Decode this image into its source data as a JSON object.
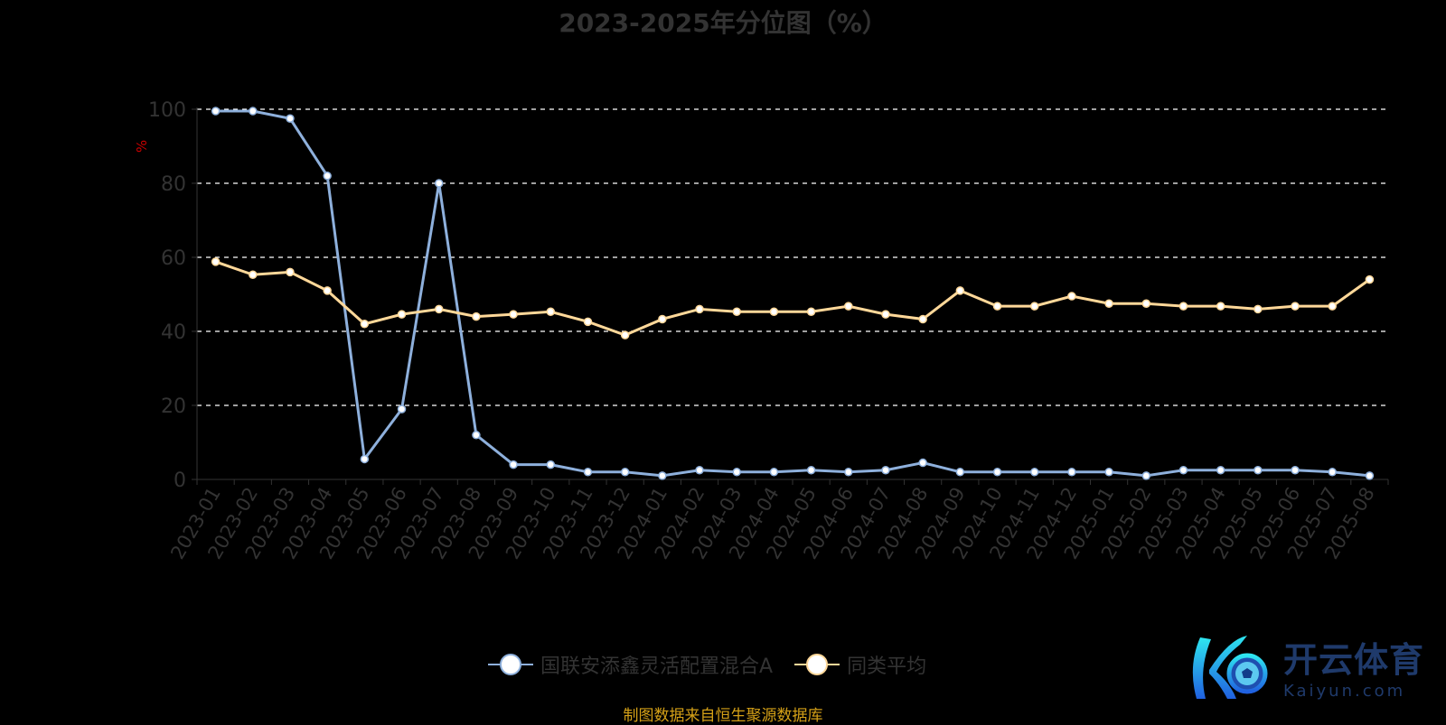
{
  "chart_data": {
    "type": "line",
    "title": "2023-2025年分位图（%）",
    "ylabel": "%",
    "xlabel": "",
    "ylim": [
      0,
      100
    ],
    "yticks": [
      0,
      20,
      40,
      60,
      80,
      100
    ],
    "grid": true,
    "legend_position": "bottom",
    "categories": [
      "2023-01",
      "2023-02",
      "2023-03",
      "2023-04",
      "2023-05",
      "2023-06",
      "2023-07",
      "2023-08",
      "2023-09",
      "2023-10",
      "2023-11",
      "2023-12",
      "2024-01",
      "2024-02",
      "2024-03",
      "2024-04",
      "2024-05",
      "2024-06",
      "2024-07",
      "2024-08",
      "2024-09",
      "2024-10",
      "2024-11",
      "2024-12",
      "2025-01",
      "2025-02",
      "2025-03",
      "2025-04",
      "2025-05",
      "2025-06",
      "2025-07",
      "2025-08"
    ],
    "series": [
      {
        "name": "国联安添鑫灵活配置混合A",
        "color": "#8eb0dc",
        "values": [
          99.5,
          99.5,
          97.5,
          82,
          5.5,
          19,
          80,
          12,
          4,
          4,
          2,
          2,
          1,
          2.5,
          2,
          2,
          2.5,
          2,
          2.5,
          4.5,
          2,
          2,
          2,
          2,
          2,
          1,
          2.5,
          2.5,
          2.5,
          2.5,
          2,
          1
        ]
      },
      {
        "name": "同类平均",
        "color": "#ffd899",
        "values": [
          58.8,
          55.3,
          56,
          51,
          42,
          44.6,
          46,
          44,
          44.6,
          45.3,
          42.6,
          39,
          43.3,
          46,
          45.3,
          45.3,
          45.3,
          46.8,
          44.6,
          43.3,
          51,
          46.8,
          46.8,
          49.5,
          47.5,
          47.5,
          46.8,
          46.8,
          46,
          46.8,
          46.8,
          54
        ]
      }
    ]
  },
  "source_note": "制图数据来自恒生聚源数据库",
  "watermark": {
    "cn": "开云体育",
    "en": "Kaiyun.com"
  }
}
